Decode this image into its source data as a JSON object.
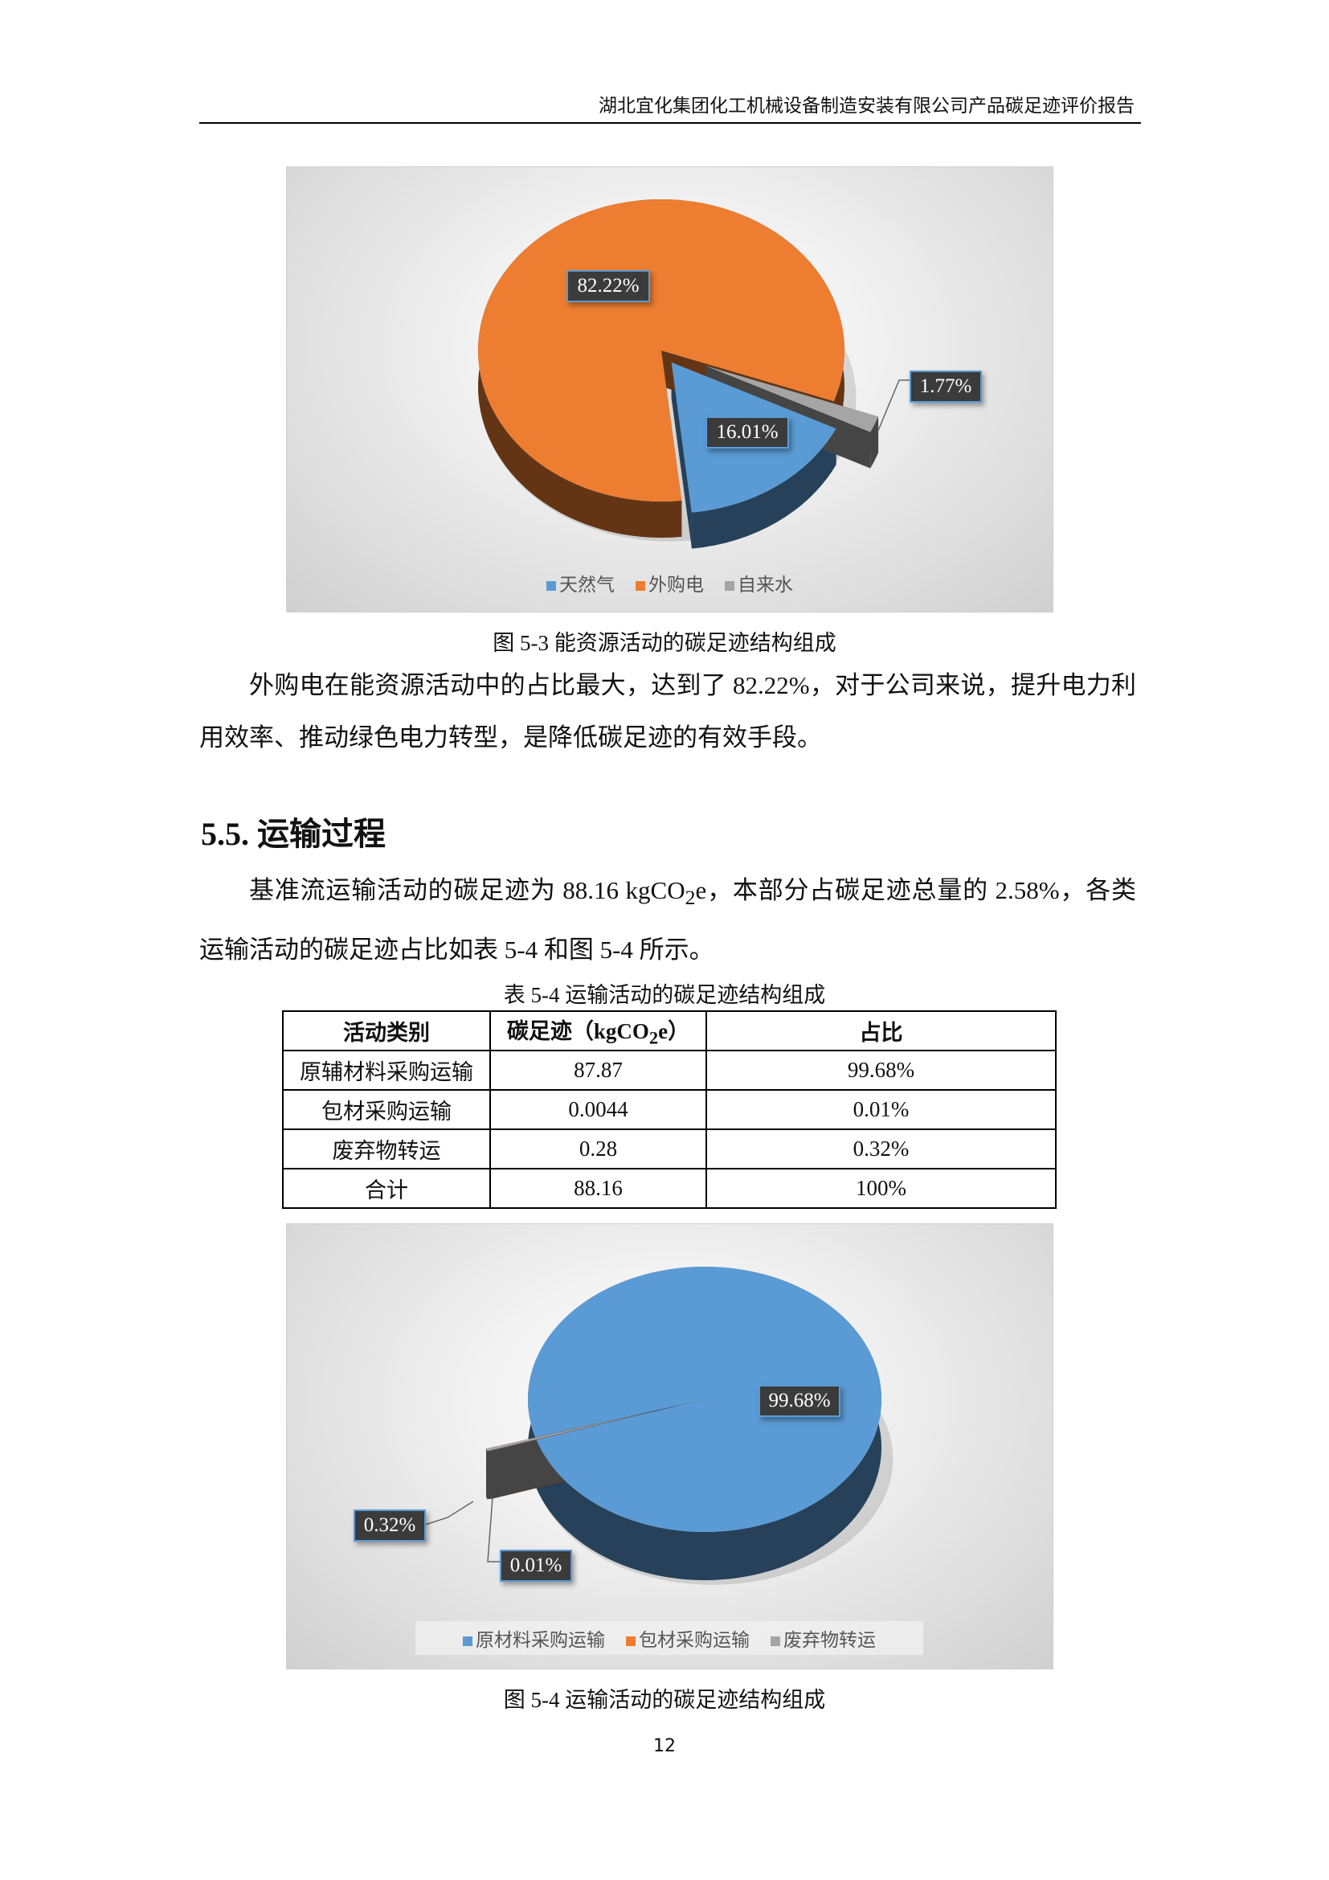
{
  "header": {
    "title": "湖北宜化集团化工机械设备制造安装有限公司产品碳足迹评价报告"
  },
  "figure_5_3": {
    "caption": "图 5-3  能资源活动的碳足迹结构组成",
    "chart_data": {
      "type": "pie",
      "style": "3d-exploded",
      "categories": [
        "天然气",
        "外购电",
        "自来水"
      ],
      "values": [
        16.01,
        82.22,
        1.77
      ],
      "labels": [
        "16.01%",
        "82.22%",
        "1.77%"
      ],
      "colors": [
        "#5b9bd5",
        "#ed7d31",
        "#a5a5a5"
      ],
      "legend": "bottom"
    }
  },
  "paragraph1": "外购电在能资源活动中的占比最大，达到了 82.22%，对于公司来说，提升电力利用效率、推动绿色电力转型，是降低碳足迹的有效手段。",
  "section": {
    "heading": "5.5. 运输过程"
  },
  "paragraph2": {
    "a": "基准流运输活动的碳足迹为 88.16 kgCO",
    "sub": "2",
    "b": "e，本部分占碳足迹总量的 2.58%，各类运输活动的碳足迹占比如表 5-4 和图 5-4 所示。"
  },
  "table_5_4": {
    "caption": "表 5-4  运输活动的碳足迹结构组成",
    "headers": {
      "c1": "活动类别",
      "c2a": "碳足迹（kgCO",
      "c2sub": "2",
      "c2b": "e）",
      "c3": "占比"
    },
    "rows": [
      [
        "原辅材料采购运输",
        "87.87",
        "99.68%"
      ],
      [
        "包材采购运输",
        "0.0044",
        "0.01%"
      ],
      [
        "废弃物转运",
        "0.28",
        "0.32%"
      ],
      [
        "合计",
        "88.16",
        "100%"
      ]
    ]
  },
  "figure_5_4": {
    "caption": "图 5-4  运输活动的碳足迹结构组成",
    "chart_data": {
      "type": "pie",
      "style": "3d-exploded",
      "categories": [
        "原材料采购运输",
        "包材采购运输",
        "废弃物转运"
      ],
      "values": [
        99.68,
        0.01,
        0.32
      ],
      "labels": [
        "99.68%",
        "0.01%",
        "0.32%"
      ],
      "colors": [
        "#5b9bd5",
        "#ed7d31",
        "#a5a5a5"
      ],
      "legend": "bottom"
    }
  },
  "page_number": "12"
}
